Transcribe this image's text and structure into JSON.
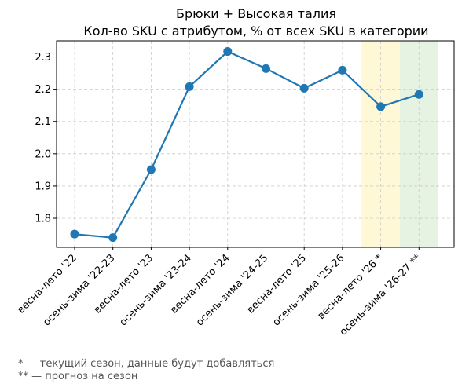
{
  "colors": {
    "line": "#1f77b4",
    "grid": "#cccccc",
    "current_band": "#fff8d6",
    "forecast_band": "#e6f2e2",
    "footnote": "#555555"
  },
  "chart_data": {
    "type": "line",
    "title": "Брюки + Высокая талия",
    "subtitle": "Кол-во SKU с атрибутом, % от всех SKU в категории",
    "xlabel": "",
    "ylabel": "",
    "categories": [
      "весна-лето '22",
      "осень-зима '22-23",
      "весна-лето '23",
      "осень-зима '23-24",
      "весна-лето '24",
      "осень-зима '24-25",
      "весна-лето '25",
      "осень-зима '25-26",
      "весна-лето '26 *",
      "осень-зима '26-27 **"
    ],
    "series": [
      {
        "values": [
          1.751,
          1.74,
          1.951,
          2.208,
          2.317,
          2.264,
          2.203,
          2.259,
          2.146,
          2.184
        ]
      }
    ],
    "ylim": [
      1.71,
      2.35
    ],
    "yticks": [
      1.8,
      1.9,
      2.0,
      2.1,
      2.2,
      2.3
    ],
    "ytick_labels": [
      "1.8",
      "1.9",
      "2.0",
      "2.1",
      "2.2",
      "2.3"
    ],
    "grid": true,
    "highlight": [
      {
        "category_index": 8,
        "kind": "current"
      },
      {
        "category_index": 9,
        "kind": "forecast"
      }
    ]
  },
  "footnotes": [
    "* — текущий сезон, данные будут добавляться",
    "** — прогноз на сезон"
  ]
}
